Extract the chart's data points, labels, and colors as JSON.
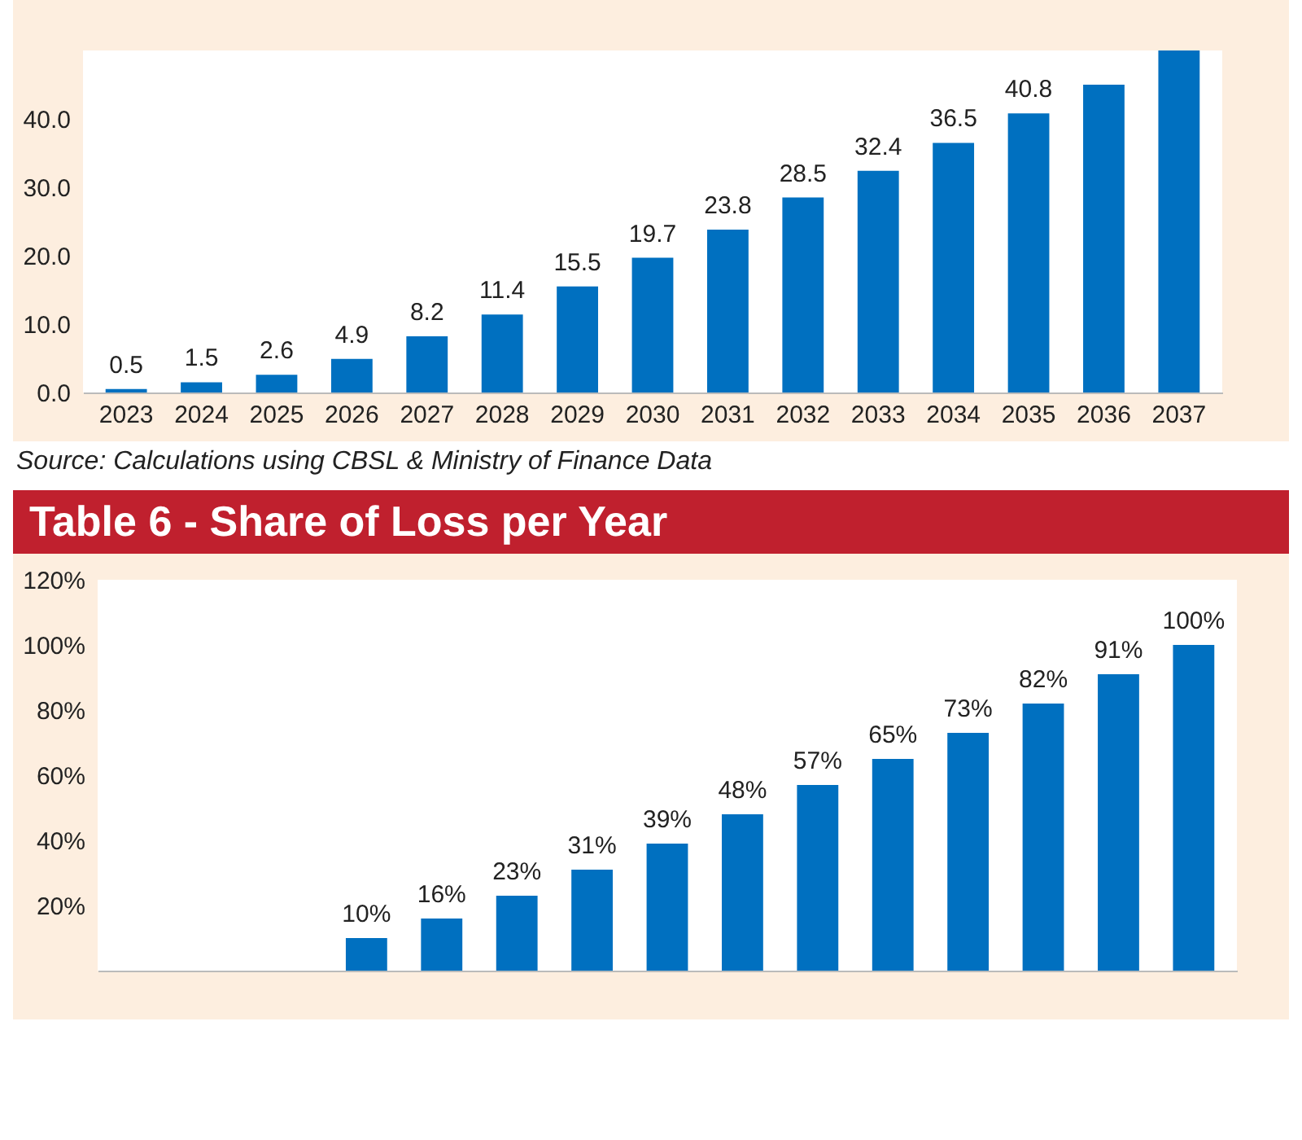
{
  "chart_data": [
    {
      "type": "bar",
      "categories": [
        "2023",
        "2024",
        "2025",
        "2026",
        "2027",
        "2028",
        "2029",
        "2030",
        "2031",
        "2032",
        "2033",
        "2034",
        "2035",
        "2036",
        "2037"
      ],
      "values": [
        0.5,
        1.5,
        2.6,
        4.9,
        8.2,
        11.4,
        15.5,
        19.7,
        23.8,
        28.5,
        32.4,
        36.5,
        40.8,
        45,
        50
      ],
      "value_labels": [
        "0.5",
        "1.5",
        "2.6",
        "4.9",
        "8.2",
        "11.4",
        "15.5",
        "19.7",
        "23.8",
        "28.5",
        "32.4",
        "36.5",
        "40.8",
        null,
        null
      ],
      "color": "#0070c0",
      "ylim": [
        0,
        50
      ],
      "yticks": [
        {
          "value": 0,
          "label": "0.0"
        },
        {
          "value": 10,
          "label": "10.0"
        },
        {
          "value": 20,
          "label": "20.0"
        },
        {
          "value": 30,
          "label": "30.0"
        },
        {
          "value": 40,
          "label": "40.0"
        }
      ],
      "annotations": [
        "Source: Calculations using CBSL & Ministry of Finance Data"
      ]
    },
    {
      "type": "bar",
      "title": "Table 6 - Share of Loss per Year",
      "categories": [
        null,
        null,
        null,
        null,
        null,
        null,
        null,
        null,
        null,
        null,
        null,
        null,
        null,
        null,
        null
      ],
      "values": [
        null,
        null,
        null,
        10,
        16,
        23,
        31,
        39,
        48,
        57,
        65,
        73,
        82,
        91,
        100
      ],
      "value_labels": [
        null,
        null,
        null,
        "10%",
        "16%",
        "23%",
        "31%",
        "39%",
        "48%",
        "57%",
        "65%",
        "73%",
        "82%",
        "91%",
        "100%"
      ],
      "color": "#0070c0",
      "ylim": [
        0,
        120
      ],
      "yticks": [
        {
          "value": 20,
          "label": "20%"
        },
        {
          "value": 40,
          "label": "40%"
        },
        {
          "value": 60,
          "label": "60%"
        },
        {
          "value": 80,
          "label": "80%"
        },
        {
          "value": 100,
          "label": "100%"
        },
        {
          "value": 120,
          "label": "120%"
        }
      ]
    }
  ]
}
